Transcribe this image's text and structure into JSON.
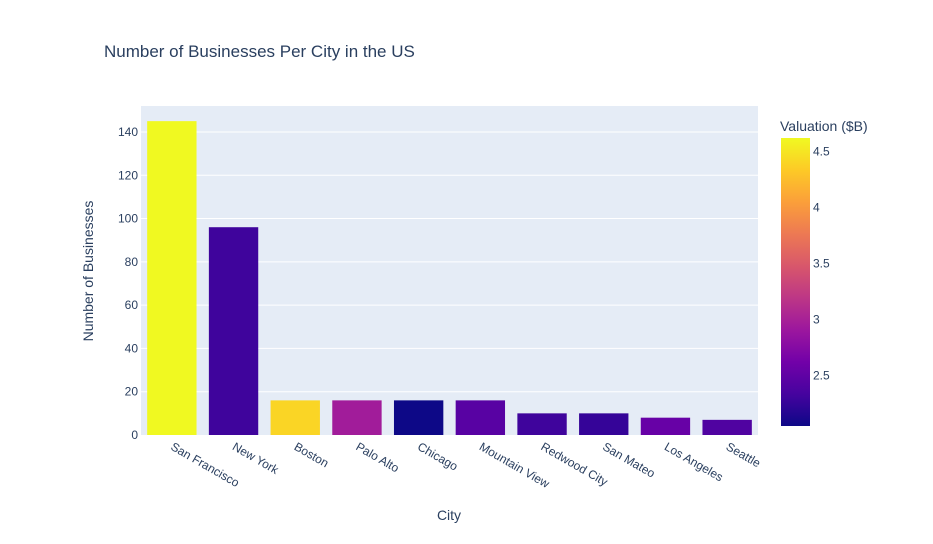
{
  "chart_data": {
    "type": "bar",
    "title": "Number of Businesses Per City in the US",
    "xlabel": "City",
    "ylabel": "Number of Businesses",
    "ylim": [
      0,
      152
    ],
    "yticks": [
      0,
      20,
      40,
      60,
      80,
      100,
      120,
      140
    ],
    "categories": [
      "San Francisco",
      "New York",
      "Boston",
      "Palo Alto",
      "Chicago",
      "Mountain View",
      "Redwood City",
      "San Mateo",
      "Los Angeles",
      "Seattle"
    ],
    "values": [
      145,
      96,
      16,
      16,
      16,
      16,
      10,
      10,
      8,
      7
    ],
    "valuation": [
      4.62,
      2.3,
      4.4,
      2.95,
      2.05,
      2.45,
      2.3,
      2.25,
      2.55,
      2.4
    ],
    "colorbar": {
      "title": "Valuation ($B)",
      "range": [
        2.05,
        4.62
      ],
      "ticks": [
        2.5,
        3,
        3.5,
        4,
        4.5
      ],
      "colorscale": [
        "#0d0887",
        "#46039f",
        "#7201a8",
        "#9c179e",
        "#bd3786",
        "#d8576b",
        "#ed7953",
        "#fb9f3a",
        "#fdca26",
        "#f0f921"
      ]
    },
    "grid": true,
    "plot_bgcolor": "#e5ecf6"
  }
}
